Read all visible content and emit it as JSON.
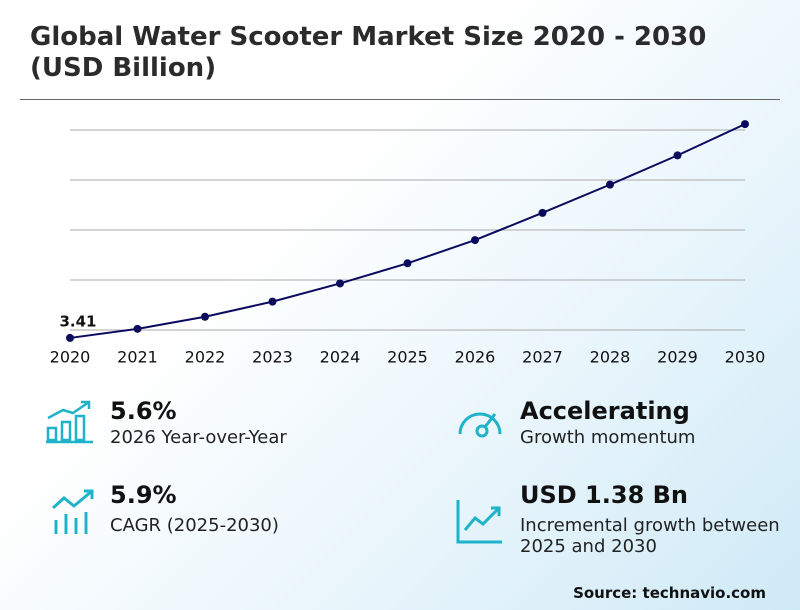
{
  "chart_data": {
    "type": "line",
    "title": "Global Water Scooter Market Size 2020 - 2030 (USD Billion)",
    "categories": [
      "2020",
      "2021",
      "2022",
      "2023",
      "2024",
      "2025",
      "2026",
      "2027",
      "2028",
      "2029",
      "2030"
    ],
    "values": [
      3.41,
      3.5,
      3.62,
      3.77,
      3.95,
      4.15,
      4.38,
      4.65,
      4.93,
      5.22,
      5.53
    ],
    "value_labels": [
      "3.41",
      null,
      null,
      null,
      null,
      null,
      null,
      null,
      null,
      null,
      null
    ],
    "color": "#0b0b5e",
    "ylim": [
      3.33,
      5.65
    ],
    "grid": true
  },
  "stats": [
    {
      "value": "5.6%",
      "label": "2026 Year-over-Year"
    },
    {
      "value": "Accelerating",
      "label": "Growth momentum"
    },
    {
      "value": "5.9%",
      "label": "CAGR (2025-2030)"
    },
    {
      "value": "USD 1.38 Bn",
      "label": "Incremental growth between 2025 and 2030"
    }
  ],
  "source": "Source: technavio.com"
}
